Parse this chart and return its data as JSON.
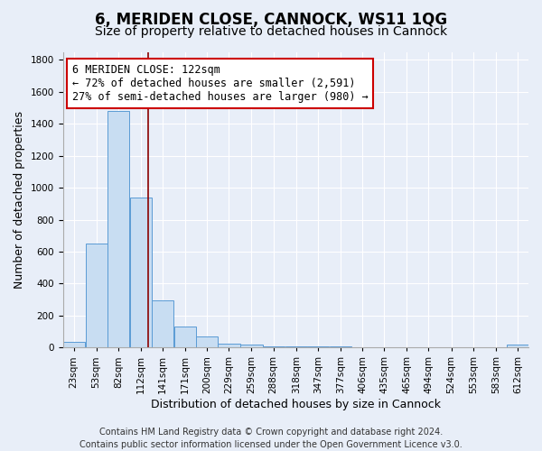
{
  "title": "6, MERIDEN CLOSE, CANNOCK, WS11 1QG",
  "subtitle": "Size of property relative to detached houses in Cannock",
  "xlabel": "Distribution of detached houses by size in Cannock",
  "ylabel": "Number of detached properties",
  "bin_labels": [
    "23sqm",
    "53sqm",
    "82sqm",
    "112sqm",
    "141sqm",
    "171sqm",
    "200sqm",
    "229sqm",
    "259sqm",
    "288sqm",
    "318sqm",
    "347sqm",
    "377sqm",
    "406sqm",
    "435sqm",
    "465sqm",
    "494sqm",
    "524sqm",
    "553sqm",
    "583sqm",
    "612sqm"
  ],
  "bin_centers": [
    23,
    53,
    82,
    112,
    141,
    171,
    200,
    229,
    259,
    288,
    318,
    347,
    377,
    406,
    435,
    465,
    494,
    524,
    553,
    583,
    612
  ],
  "bar_heights": [
    35,
    650,
    1480,
    940,
    295,
    130,
    70,
    25,
    20,
    10,
    5,
    5,
    5,
    0,
    0,
    0,
    0,
    0,
    0,
    0,
    20
  ],
  "bin_width": 29,
  "bar_color": "#c8ddf2",
  "bar_edge_color": "#5b9bd5",
  "background_color": "#e8eef8",
  "grid_color": "#ffffff",
  "vline_x": 122,
  "vline_color": "#8b0000",
  "annotation_line1": "6 MERIDEN CLOSE: 122sqm",
  "annotation_line2": "← 72% of detached houses are smaller (2,591)",
  "annotation_line3": "27% of semi-detached houses are larger (980) →",
  "annotation_box_color": "white",
  "annotation_box_edge": "#cc0000",
  "ylim": [
    0,
    1850
  ],
  "yticks": [
    0,
    200,
    400,
    600,
    800,
    1000,
    1200,
    1400,
    1600,
    1800
  ],
  "footer_text": "Contains HM Land Registry data © Crown copyright and database right 2024.\nContains public sector information licensed under the Open Government Licence v3.0.",
  "title_fontsize": 12,
  "subtitle_fontsize": 10,
  "xlabel_fontsize": 9,
  "ylabel_fontsize": 9,
  "tick_fontsize": 7.5,
  "annotation_fontsize": 8.5,
  "footer_fontsize": 7
}
